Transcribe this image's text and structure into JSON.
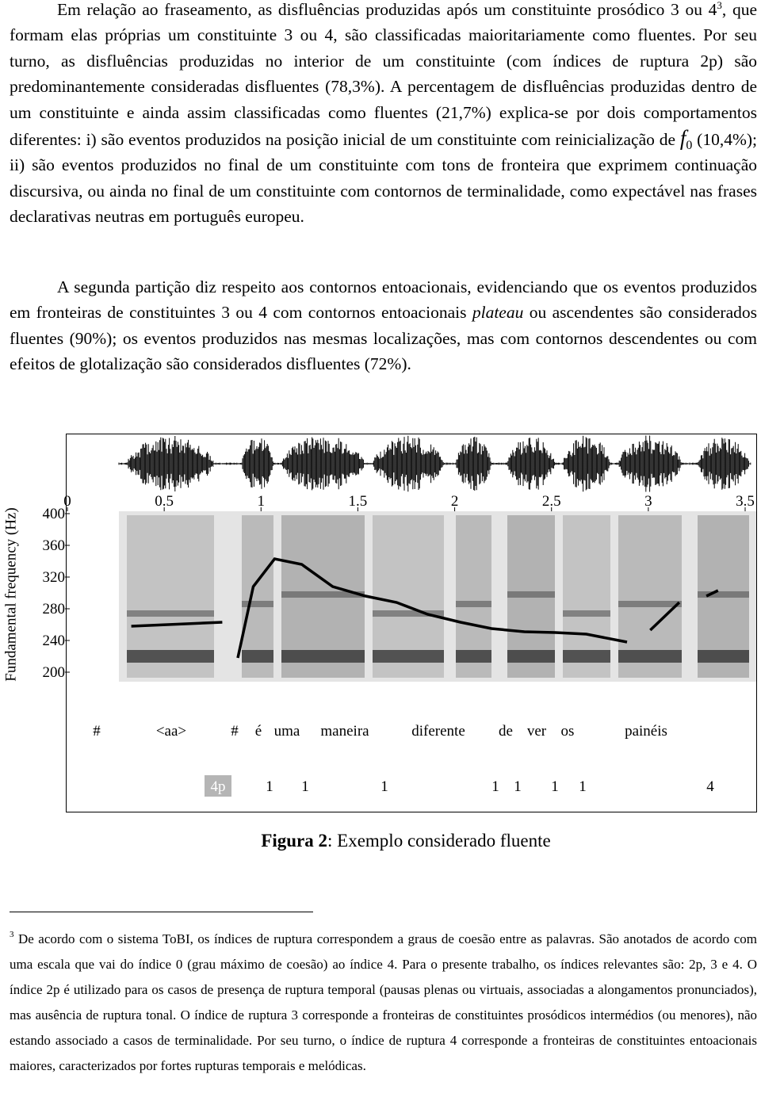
{
  "paragraphs": [
    [
      "Em relação ao fraseamento, as disfluências produzidas após um constituinte prosódico 3 ou 4",
      "3",
      ", que formam elas próprias um constituinte 3 ou 4, são classificadas maioritariamente como fluentes. Por seu turno, as disfluências produzidas no interior de um constituinte (com índices de ruptura 2p) são predominantemente consideradas disfluentes (78,3%). A percentagem de disfluências produzidas dentro de um constituinte e ainda assim classificadas como fluentes (21,7%) explica-se por dois comportamentos diferentes: i) são eventos produzidos na posição inicial de um constituinte com reinicialização de ",
      "f",
      "0",
      " (10,4%); ii) são eventos produzidos no final de um constituinte com tons de fronteira que exprimem continuação discursiva, ou ainda no final de um constituinte com contornos de terminalidade, como expectável nas frases declarativas neutras em português europeu."
    ],
    [
      "A segunda partição diz respeito aos contornos entoacionais, evidenciando que os eventos produzidos em fronteiras de constituintes 3 ou 4 com contornos entoacionais ",
      "plateau",
      " ou ascendentes são considerados fluentes (90%); os eventos produzidos nas mesmas localizações, mas com contornos descendentes ou com efeitos de glotalização são considerados disfluentes (72%)."
    ]
  ],
  "figure": {
    "chart_data": {
      "type": "line",
      "y_label": "Fundamental frequency (Hz)",
      "xlim": [
        0,
        3.5
      ],
      "xticks": [
        0,
        0.5,
        1,
        1.5,
        2,
        2.5,
        3,
        3.5
      ],
      "ylim": [
        200,
        400
      ],
      "yticks": [
        200,
        240,
        280,
        320,
        360,
        400
      ],
      "contour": {
        "x": [
          0.33,
          0.8,
          null,
          0.88,
          0.96,
          1.07,
          1.21,
          1.37,
          1.54,
          1.7,
          1.86,
          2.03,
          2.19,
          2.36,
          2.52,
          2.68,
          2.89,
          null,
          3.01,
          3.16,
          null,
          3.3,
          3.36
        ],
        "values": [
          258,
          263,
          null,
          218,
          308,
          343,
          336,
          308,
          296,
          288,
          273,
          263,
          255,
          251,
          250,
          248,
          238,
          null,
          253,
          288,
          null,
          296,
          303
        ],
        "color": "#000000"
      }
    },
    "words": [
      "#",
      "<aa>",
      "#",
      "é",
      "uma",
      "maneira",
      "diferente",
      "de",
      "ver",
      "os",
      "painéis"
    ],
    "breaks": [
      "4p",
      "1",
      "1",
      "1",
      "1",
      "1",
      "1",
      "1",
      "4"
    ],
    "caption": [
      "Figura 2",
      ": Exemplo considerado fluente"
    ]
  },
  "footnote": [
    "3",
    "De acordo com o sistema ToBI, os índices de ruptura correspondem a graus de coesão entre as palavras. São anotados de acordo com uma escala que vai do índice 0 (grau máximo de coesão) ao índice 4. Para o presente trabalho, os índices relevantes são: 2p, 3 e 4. O índice 2p é utilizado para os casos de presença de ruptura temporal (pausas plenas ou virtuais, associadas a alongamentos pronunciados), mas ausência de ruptura tonal. O índice de ruptura 3 corresponde a fronteiras de constituintes prosódicos intermédios (ou menores), não estando associado a casos de terminalidade. Por seu turno, o índice de ruptura 4 corresponde a fronteiras de constituintes entoacionais maiores, caracterizados por fortes rupturas temporais e melódicas."
  ]
}
